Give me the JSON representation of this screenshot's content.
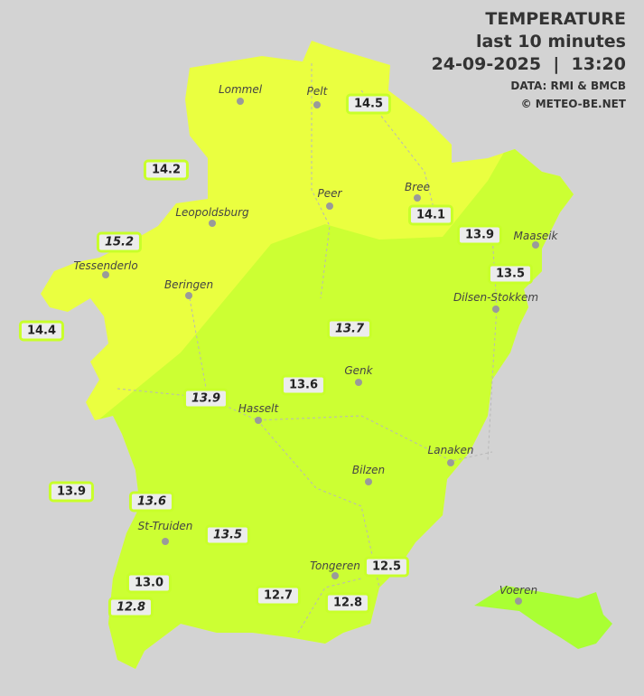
{
  "header": {
    "title": "TEMPERATURE",
    "subtitle": "last 10 minutes",
    "datetime": "24-09-2025  |  13:20",
    "source": "DATA: RMI & BMCB",
    "copyright": "© METEO-BE.NET"
  },
  "colors": {
    "background": "#d3d3d3",
    "zone_14_plus": "#eaff40",
    "zone_13_14": "#ccff33",
    "zone_voeren": "#aaff33",
    "label_border": "#c8ff2a"
  },
  "cities": [
    "Lommel",
    "Pelt",
    "Peer",
    "Bree",
    "Leopoldsburg",
    "Maaseik",
    "Tessenderlo",
    "Beringen",
    "Dilsen-Stokkem",
    "Genk",
    "Hasselt",
    "Lanaken",
    "Bilzen",
    "St-Truiden",
    "Tongeren",
    "Voeren"
  ],
  "readings": [
    {
      "value": "14.5",
      "italic": false
    },
    {
      "value": "14.2",
      "italic": false
    },
    {
      "value": "14.1",
      "italic": false
    },
    {
      "value": "13.9",
      "italic": false
    },
    {
      "value": "15.2",
      "italic": true
    },
    {
      "value": "13.5",
      "italic": false
    },
    {
      "value": "14.4",
      "italic": false
    },
    {
      "value": "13.7",
      "italic": true
    },
    {
      "value": "13.6",
      "italic": false
    },
    {
      "value": "13.9",
      "italic": true
    },
    {
      "value": "13.9",
      "italic": false
    },
    {
      "value": "13.6",
      "italic": true
    },
    {
      "value": "13.5",
      "italic": true
    },
    {
      "value": "12.5",
      "italic": false
    },
    {
      "value": "13.0",
      "italic": false
    },
    {
      "value": "12.8",
      "italic": true
    },
    {
      "value": "12.7",
      "italic": false
    },
    {
      "value": "12.8",
      "italic": false
    }
  ]
}
